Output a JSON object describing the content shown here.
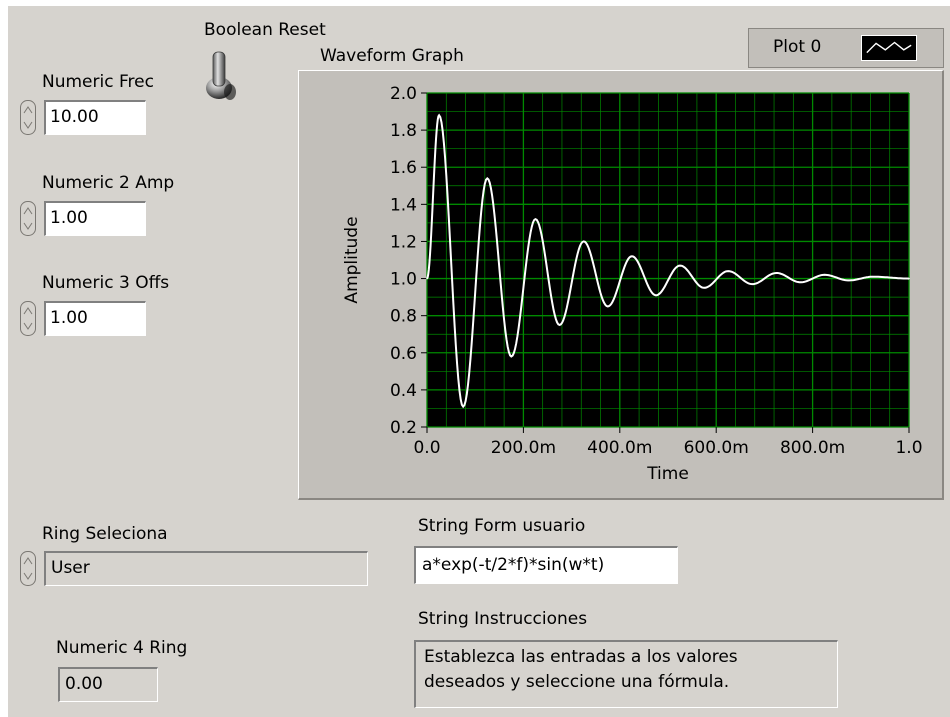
{
  "controls": {
    "numeric_frec": {
      "label": "Numeric Frec",
      "value": "10.00"
    },
    "numeric_2_amp": {
      "label": "Numeric 2 Amp",
      "value": "1.00"
    },
    "numeric_3_offs": {
      "label": "Numeric 3 Offs",
      "value": "1.00"
    },
    "boolean_reset": {
      "label": "Boolean Reset"
    },
    "ring_seleciona": {
      "label": "Ring Seleciona",
      "value": "User"
    },
    "numeric_4_ring": {
      "label": "Numeric 4 Ring",
      "value": "0.00"
    },
    "string_form_usuario": {
      "label": "String Form usuario",
      "value": "a*exp(-t/2*f)*sin(w*t)"
    },
    "string_instrucciones": {
      "label": "String Instrucciones",
      "line1": "Establezca las entradas a los valores",
      "line2": "deseados y seleccione una fórmula."
    }
  },
  "graph": {
    "label": "Waveform Graph",
    "legend": {
      "plot_name": "Plot 0",
      "icon": "line-plot-icon"
    },
    "colors": {
      "plot_bg": "#000000",
      "grid": "#008a00",
      "trace": "#ffffff"
    }
  },
  "chart_data": {
    "type": "line",
    "xlabel": "Time",
    "ylabel": "Amplitude",
    "xlim": [
      0,
      1.0
    ],
    "ylim": [
      0.2,
      2.0
    ],
    "x_tick_labels": [
      "0.0",
      "200.0m",
      "400.0m",
      "600.0m",
      "800.0m",
      "1.0"
    ],
    "y_tick_labels": [
      "0.2",
      "0.4",
      "0.6",
      "0.8",
      "1.0",
      "1.2",
      "1.4",
      "1.6",
      "1.8",
      "2.0"
    ],
    "grid": true,
    "series": [
      {
        "name": "Plot 0",
        "peaks": [
          {
            "x": 0.0,
            "y": 1.0
          },
          {
            "x": 0.025,
            "y": 1.88
          },
          {
            "x": 0.075,
            "y": 0.31
          },
          {
            "x": 0.125,
            "y": 1.54
          },
          {
            "x": 0.175,
            "y": 0.58
          },
          {
            "x": 0.225,
            "y": 1.32
          },
          {
            "x": 0.275,
            "y": 0.75
          },
          {
            "x": 0.325,
            "y": 1.2
          },
          {
            "x": 0.375,
            "y": 0.85
          },
          {
            "x": 0.425,
            "y": 1.12
          },
          {
            "x": 0.475,
            "y": 0.91
          },
          {
            "x": 0.525,
            "y": 1.07
          },
          {
            "x": 0.575,
            "y": 0.95
          },
          {
            "x": 0.625,
            "y": 1.04
          },
          {
            "x": 0.675,
            "y": 0.97
          },
          {
            "x": 0.725,
            "y": 1.03
          },
          {
            "x": 0.775,
            "y": 0.98
          },
          {
            "x": 0.825,
            "y": 1.02
          },
          {
            "x": 0.875,
            "y": 0.99
          },
          {
            "x": 0.925,
            "y": 1.01
          },
          {
            "x": 1.0,
            "y": 1.0
          }
        ]
      }
    ]
  }
}
